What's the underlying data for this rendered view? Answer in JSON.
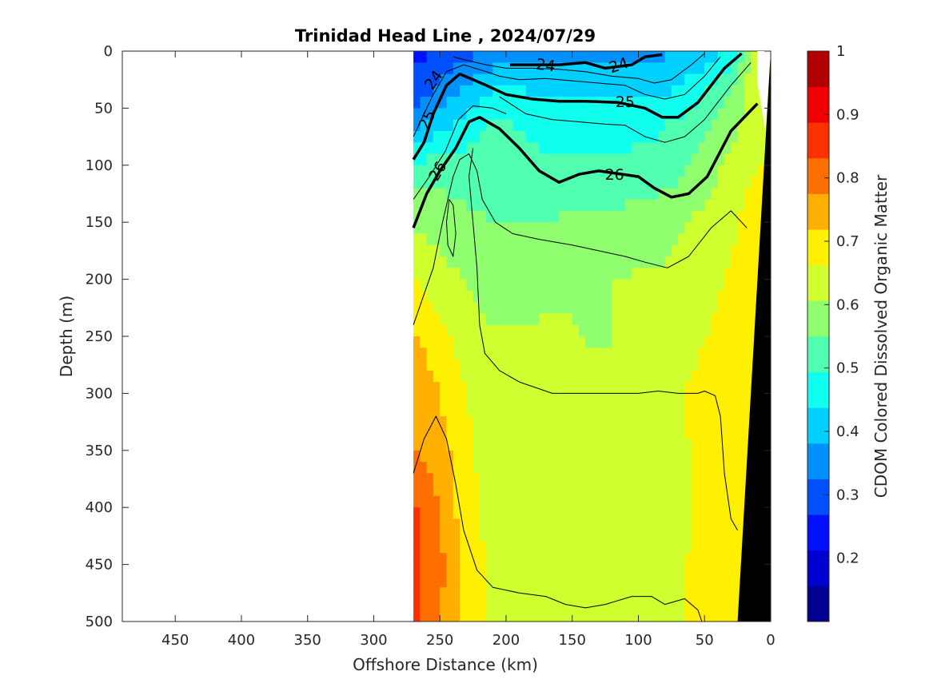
{
  "chart_data": {
    "type": "heatmap",
    "title": "Trinidad Head Line , 2024/07/29",
    "xlabel": "Offshore Distance (km)",
    "ylabel": "Depth (m)",
    "xlim": [
      490,
      0
    ],
    "ylim": [
      0,
      500
    ],
    "x_reversed": true,
    "y_reversed": true,
    "x_ticks": [
      "450",
      "400",
      "350",
      "300",
      "250",
      "200",
      "150",
      "100",
      "50",
      "0"
    ],
    "y_ticks": [
      "0",
      "50",
      "100",
      "150",
      "200",
      "250",
      "300",
      "350",
      "400",
      "450",
      "500"
    ],
    "data_extent_km": [
      270,
      0
    ],
    "colorbar": {
      "label": "CDOM Colored Dissolved Organic Matter",
      "range": [
        0.1,
        1.0
      ],
      "ticks": [
        "0.2",
        "0.3",
        "0.4",
        "0.5",
        "0.6",
        "0.7",
        "0.8",
        "0.9",
        "1"
      ],
      "colors": [
        "#000090",
        "#0000d0",
        "#0010ff",
        "#0050ff",
        "#0090ff",
        "#00d0ff",
        "#10ffef",
        "#50ffaf",
        "#90ff6f",
        "#d0ff2f",
        "#ffef00",
        "#ffaf00",
        "#ff6f00",
        "#ff3000",
        "#f00000",
        "#b00000"
      ]
    },
    "cdom_layers": [
      {
        "depth_m": 0,
        "values": [
          0.25,
          0.28,
          0.3,
          0.33,
          0.36,
          0.37,
          0.35,
          0.36,
          0.37,
          0.36,
          0.38,
          0.4,
          0.44,
          0.68
        ]
      },
      {
        "depth_m": 30,
        "values": [
          0.28,
          0.33,
          0.38,
          0.43,
          0.43,
          0.42,
          0.41,
          0.42,
          0.41,
          0.42,
          0.43,
          0.48,
          0.55,
          0.66
        ]
      },
      {
        "depth_m": 60,
        "values": [
          0.35,
          0.4,
          0.45,
          0.5,
          0.49,
          0.48,
          0.48,
          0.48,
          0.48,
          0.48,
          0.5,
          0.53,
          0.58,
          0.64
        ]
      },
      {
        "depth_m": 100,
        "values": [
          0.5,
          0.53,
          0.52,
          0.52,
          0.51,
          0.5,
          0.5,
          0.5,
          0.5,
          0.51,
          0.53,
          0.58,
          0.62,
          0.66
        ]
      },
      {
        "depth_m": 150,
        "values": [
          0.6,
          0.58,
          0.56,
          0.55,
          0.55,
          0.55,
          0.56,
          0.56,
          0.57,
          0.58,
          0.6,
          0.62,
          0.65,
          0.7
        ]
      },
      {
        "depth_m": 200,
        "values": [
          0.66,
          0.63,
          0.6,
          0.59,
          0.59,
          0.6,
          0.6,
          0.6,
          0.61,
          0.61,
          0.62,
          0.64,
          0.67,
          0.7
        ]
      },
      {
        "depth_m": 250,
        "values": [
          0.73,
          0.68,
          0.63,
          0.61,
          0.61,
          0.61,
          0.61,
          0.6,
          0.61,
          0.62,
          0.63,
          0.66,
          0.68,
          0.7
        ]
      },
      {
        "depth_m": 300,
        "values": [
          0.76,
          0.72,
          0.66,
          0.63,
          0.62,
          0.62,
          0.62,
          0.62,
          0.62,
          0.63,
          0.66,
          0.68,
          0.68,
          0.7
        ]
      },
      {
        "depth_m": 350,
        "values": [
          0.78,
          0.74,
          0.68,
          0.63,
          0.62,
          0.62,
          0.61,
          0.62,
          0.62,
          0.63,
          0.65,
          0.68,
          0.68,
          0.7
        ]
      },
      {
        "depth_m": 400,
        "values": [
          0.84,
          0.77,
          0.68,
          0.64,
          0.62,
          0.61,
          0.61,
          0.61,
          0.62,
          0.63,
          0.65,
          0.67,
          0.68,
          0.7
        ]
      },
      {
        "depth_m": 450,
        "values": [
          0.85,
          0.79,
          0.7,
          0.65,
          0.62,
          0.61,
          0.61,
          0.61,
          0.62,
          0.63,
          0.66,
          0.67,
          0.68,
          0.7
        ]
      },
      {
        "depth_m": 500,
        "values": [
          0.86,
          0.78,
          0.7,
          0.65,
          0.62,
          0.62,
          0.62,
          0.62,
          0.63,
          0.64,
          0.66,
          0.67,
          0.68,
          0.7
        ]
      }
    ],
    "cdom_layer_x_km": [
      270,
      250,
      230,
      210,
      190,
      170,
      150,
      130,
      110,
      90,
      70,
      50,
      30,
      10
    ],
    "contours": [
      {
        "level": "24",
        "major": true,
        "points_km_m": [
          [
            197,
            12
          ],
          [
            180,
            12
          ],
          [
            160,
            12
          ],
          [
            140,
            10
          ],
          [
            125,
            15
          ],
          [
            105,
            12
          ],
          [
            95,
            5
          ],
          [
            82,
            3
          ]
        ]
      },
      {
        "level": "25",
        "major": true,
        "points_km_m": [
          [
            270,
            95
          ],
          [
            262,
            80
          ],
          [
            255,
            55
          ],
          [
            245,
            30
          ],
          [
            235,
            20
          ],
          [
            215,
            30
          ],
          [
            200,
            38
          ],
          [
            180,
            42
          ],
          [
            160,
            44
          ],
          [
            140,
            44
          ],
          [
            115,
            45
          ],
          [
            95,
            50
          ],
          [
            82,
            58
          ],
          [
            70,
            58
          ],
          [
            55,
            45
          ],
          [
            35,
            15
          ],
          [
            22,
            2
          ]
        ]
      },
      {
        "level": "26",
        "major": true,
        "points_km_m": [
          [
            270,
            155
          ],
          [
            260,
            125
          ],
          [
            250,
            105
          ],
          [
            238,
            85
          ],
          [
            228,
            62
          ],
          [
            220,
            58
          ],
          [
            205,
            68
          ],
          [
            190,
            85
          ],
          [
            175,
            105
          ],
          [
            160,
            115
          ],
          [
            145,
            108
          ],
          [
            130,
            105
          ],
          [
            112,
            108
          ],
          [
            100,
            110
          ],
          [
            88,
            120
          ],
          [
            75,
            128
          ],
          [
            62,
            125
          ],
          [
            48,
            110
          ],
          [
            30,
            70
          ],
          [
            10,
            46
          ]
        ]
      },
      {
        "level": "",
        "major": false,
        "points_km_m": [
          [
            270,
            130
          ],
          [
            258,
            110
          ],
          [
            246,
            88
          ],
          [
            236,
            60
          ],
          [
            225,
            48
          ],
          [
            210,
            50
          ],
          [
            200,
            55
          ]
        ]
      },
      {
        "level": "",
        "major": false,
        "points_km_m": [
          [
            270,
            75
          ],
          [
            262,
            55
          ],
          [
            255,
            38
          ],
          [
            245,
            18
          ],
          [
            232,
            12
          ],
          [
            215,
            18
          ],
          [
            205,
            22
          ],
          [
            190,
            25
          ],
          [
            170,
            24
          ],
          [
            150,
            26
          ],
          [
            130,
            28
          ],
          [
            110,
            30
          ],
          [
            95,
            38
          ],
          [
            80,
            42
          ],
          [
            65,
            38
          ],
          [
            50,
            22
          ],
          [
            38,
            5
          ]
        ]
      },
      {
        "level": "",
        "major": false,
        "points_km_m": [
          [
            240,
            5
          ],
          [
            230,
            8
          ],
          [
            215,
            12
          ],
          [
            200,
            15
          ],
          [
            180,
            15
          ],
          [
            160,
            16
          ],
          [
            140,
            18
          ],
          [
            120,
            22
          ],
          [
            100,
            24
          ],
          [
            88,
            28
          ],
          [
            75,
            25
          ],
          [
            60,
            12
          ],
          [
            50,
            2
          ]
        ]
      },
      {
        "level": "",
        "major": false,
        "points_km_m": [
          [
            205,
            40
          ],
          [
            185,
            55
          ],
          [
            165,
            60
          ],
          [
            145,
            62
          ],
          [
            125,
            64
          ],
          [
            110,
            65
          ],
          [
            95,
            75
          ],
          [
            80,
            80
          ],
          [
            65,
            75
          ],
          [
            50,
            60
          ],
          [
            30,
            30
          ],
          [
            15,
            10
          ]
        ]
      },
      {
        "level": "",
        "major": false,
        "points_km_m": [
          [
            270,
            240
          ],
          [
            255,
            190
          ],
          [
            248,
            150
          ],
          [
            240,
            110
          ],
          [
            235,
            95
          ],
          [
            228,
            90
          ],
          [
            222,
            105
          ],
          [
            218,
            130
          ],
          [
            208,
            150
          ],
          [
            195,
            160
          ],
          [
            175,
            165
          ],
          [
            150,
            170
          ],
          [
            130,
            175
          ],
          [
            110,
            180
          ],
          [
            95,
            185
          ],
          [
            78,
            190
          ],
          [
            62,
            180
          ],
          [
            45,
            155
          ],
          [
            30,
            140
          ],
          [
            18,
            155
          ]
        ]
      },
      {
        "level": "",
        "major": false,
        "points_km_m": [
          [
            243,
            130
          ],
          [
            245,
            150
          ],
          [
            244,
            170
          ],
          [
            240,
            180
          ],
          [
            238,
            160
          ],
          [
            240,
            135
          ],
          [
            243,
            130
          ]
        ]
      },
      {
        "level": "",
        "major": false,
        "points_km_m": [
          [
            225,
            85
          ],
          [
            228,
            110
          ],
          [
            225,
            150
          ],
          [
            222,
            190
          ],
          [
            220,
            240
          ],
          [
            216,
            265
          ],
          [
            205,
            280
          ],
          [
            190,
            290
          ],
          [
            165,
            300
          ],
          [
            150,
            300
          ],
          [
            130,
            300
          ],
          [
            115,
            300
          ],
          [
            100,
            300
          ],
          [
            85,
            298
          ],
          [
            70,
            300
          ],
          [
            55,
            300
          ],
          [
            50,
            298
          ],
          [
            42,
            302
          ],
          [
            38,
            320
          ],
          [
            35,
            370
          ],
          [
            30,
            410
          ],
          [
            25,
            420
          ]
        ]
      },
      {
        "level": "",
        "major": false,
        "points_km_m": [
          [
            270,
            370
          ],
          [
            262,
            340
          ],
          [
            253,
            320
          ],
          [
            245,
            340
          ],
          [
            238,
            380
          ],
          [
            232,
            420
          ],
          [
            222,
            455
          ],
          [
            210,
            470
          ],
          [
            190,
            475
          ],
          [
            170,
            478
          ],
          [
            155,
            485
          ],
          [
            140,
            488
          ],
          [
            125,
            485
          ],
          [
            105,
            478
          ],
          [
            90,
            478
          ],
          [
            80,
            485
          ],
          [
            65,
            480
          ],
          [
            55,
            490
          ],
          [
            52,
            500
          ]
        ]
      }
    ]
  }
}
